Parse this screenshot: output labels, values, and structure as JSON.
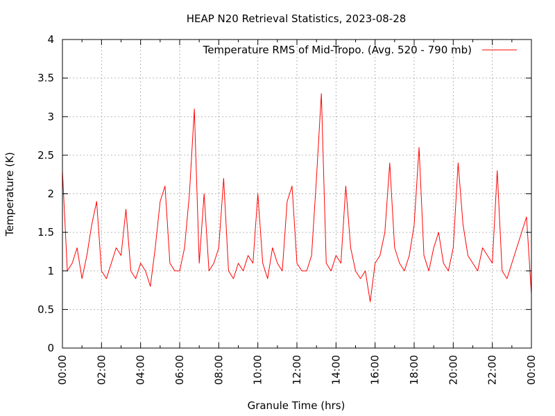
{
  "chart_data": {
    "type": "line",
    "title": "HEAP N20 Retrieval Statistics, 2023-08-28",
    "xlabel": "Granule Time (hrs)",
    "ylabel": "Temperature (K)",
    "x_tick_labels": [
      "00:00",
      "02:00",
      "04:00",
      "06:00",
      "08:00",
      "10:00",
      "12:00",
      "14:00",
      "16:00",
      "18:00",
      "20:00",
      "22:00",
      "00:00"
    ],
    "x_range_hours": [
      0,
      24
    ],
    "ylim": [
      0,
      4
    ],
    "y_ticks": [
      0,
      0.5,
      1,
      1.5,
      2,
      2.5,
      3,
      3.5,
      4
    ],
    "grid": true,
    "legend_position": "top-right",
    "series": [
      {
        "name": "Temperature RMS of Mid-Tropo. (Avg. 520 - 790 mb)",
        "color": "#ff0000",
        "x_hours": [
          0.0,
          0.25,
          0.5,
          0.75,
          1.0,
          1.25,
          1.5,
          1.75,
          2.0,
          2.25,
          2.5,
          2.75,
          3.0,
          3.25,
          3.5,
          3.75,
          4.0,
          4.25,
          4.5,
          4.75,
          5.0,
          5.25,
          5.5,
          5.75,
          6.0,
          6.25,
          6.5,
          6.75,
          7.0,
          7.25,
          7.5,
          7.75,
          8.0,
          8.25,
          8.5,
          8.75,
          9.0,
          9.25,
          9.5,
          9.75,
          10.0,
          10.25,
          10.5,
          10.75,
          11.0,
          11.25,
          11.5,
          11.75,
          12.0,
          12.25,
          12.5,
          12.75,
          13.0,
          13.25,
          13.5,
          13.75,
          14.0,
          14.25,
          14.5,
          14.75,
          15.0,
          15.25,
          15.5,
          15.75,
          16.0,
          16.25,
          16.5,
          16.75,
          17.0,
          17.25,
          17.5,
          17.75,
          18.0,
          18.25,
          18.5,
          18.75,
          19.0,
          19.25,
          19.5,
          19.75,
          20.0,
          20.25,
          20.5,
          20.75,
          21.0,
          21.25,
          21.5,
          21.75,
          22.0,
          22.25,
          22.5,
          22.75,
          23.0,
          23.25,
          23.5,
          23.75,
          24.0
        ],
        "values": [
          2.3,
          1.0,
          1.1,
          1.3,
          0.9,
          1.2,
          1.6,
          1.9,
          1.0,
          0.9,
          1.1,
          1.3,
          1.2,
          1.8,
          1.0,
          0.9,
          1.1,
          1.0,
          0.8,
          1.3,
          1.9,
          2.1,
          1.1,
          1.0,
          1.0,
          1.3,
          2.0,
          3.1,
          1.1,
          2.0,
          1.0,
          1.1,
          1.3,
          2.2,
          1.0,
          0.9,
          1.1,
          1.0,
          1.2,
          1.1,
          2.0,
          1.1,
          0.9,
          1.3,
          1.1,
          1.0,
          1.9,
          2.1,
          1.1,
          1.0,
          1.0,
          1.2,
          2.2,
          3.3,
          1.1,
          1.0,
          1.2,
          1.1,
          2.1,
          1.3,
          1.0,
          0.9,
          1.0,
          0.6,
          1.1,
          1.2,
          1.5,
          2.4,
          1.3,
          1.1,
          1.0,
          1.2,
          1.6,
          2.6,
          1.2,
          1.0,
          1.3,
          1.5,
          1.1,
          1.0,
          1.3,
          2.4,
          1.6,
          1.2,
          1.1,
          1.0,
          1.3,
          1.2,
          1.1,
          2.3,
          1.0,
          0.9,
          1.1,
          1.3,
          1.5,
          1.7,
          0.7
        ]
      }
    ]
  }
}
